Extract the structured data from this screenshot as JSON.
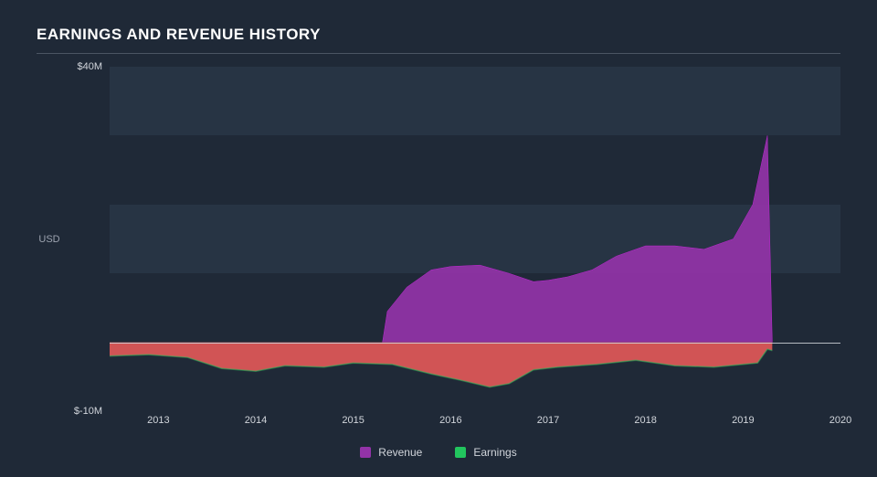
{
  "title": "EARNINGS AND REVENUE HISTORY",
  "chart": {
    "type": "area",
    "background_color": "#1f2937",
    "gridband_color": "#273444",
    "zeroline_color": "#d1d5db",
    "text_color": "#d1d5db",
    "title_color": "#ffffff",
    "yaxis": {
      "label": "USD",
      "min": -10,
      "max": 40,
      "ticks": [
        {
          "value": 40,
          "label": "$40M"
        },
        {
          "value": -10,
          "label": "$-10M"
        }
      ],
      "midband_label": true
    },
    "xaxis": {
      "min": 2012.5,
      "max": 2020,
      "ticks": [
        {
          "value": 2013,
          "label": "2013"
        },
        {
          "value": 2014,
          "label": "2014"
        },
        {
          "value": 2015,
          "label": "2015"
        },
        {
          "value": 2016,
          "label": "2016"
        },
        {
          "value": 2017,
          "label": "2017"
        },
        {
          "value": 2018,
          "label": "2018"
        },
        {
          "value": 2019,
          "label": "2019"
        },
        {
          "value": 2020,
          "label": "2020"
        }
      ]
    },
    "series": {
      "revenue": {
        "label": "Revenue",
        "fill_color": "#9333a8",
        "stroke_color": "#c026d3",
        "stroke_width": 2,
        "opacity": 0.92,
        "points": [
          [
            2015.3,
            0.0
          ],
          [
            2015.35,
            4.5
          ],
          [
            2015.55,
            8.0
          ],
          [
            2015.8,
            10.5
          ],
          [
            2016.0,
            11.0
          ],
          [
            2016.3,
            11.2
          ],
          [
            2016.6,
            10.0
          ],
          [
            2016.85,
            8.8
          ],
          [
            2017.0,
            9.0
          ],
          [
            2017.2,
            9.5
          ],
          [
            2017.45,
            10.5
          ],
          [
            2017.7,
            12.5
          ],
          [
            2018.0,
            14.0
          ],
          [
            2018.3,
            14.0
          ],
          [
            2018.6,
            13.5
          ],
          [
            2018.9,
            15.0
          ],
          [
            2019.1,
            20.0
          ],
          [
            2019.25,
            30.0
          ],
          [
            2019.3,
            0.0
          ]
        ]
      },
      "earnings": {
        "label": "Earnings",
        "fill_color": "#ea5a5a",
        "stroke_color": "#22c55e",
        "stroke_width": 1.5,
        "opacity": 0.88,
        "points": [
          [
            2012.5,
            -2.0
          ],
          [
            2012.9,
            -1.8
          ],
          [
            2013.3,
            -2.2
          ],
          [
            2013.65,
            -3.8
          ],
          [
            2014.0,
            -4.2
          ],
          [
            2014.3,
            -3.4
          ],
          [
            2014.7,
            -3.6
          ],
          [
            2015.0,
            -3.0
          ],
          [
            2015.4,
            -3.2
          ],
          [
            2015.8,
            -4.6
          ],
          [
            2016.1,
            -5.5
          ],
          [
            2016.4,
            -6.5
          ],
          [
            2016.6,
            -6.0
          ],
          [
            2016.85,
            -4.0
          ],
          [
            2017.1,
            -3.6
          ],
          [
            2017.5,
            -3.2
          ],
          [
            2017.9,
            -2.6
          ],
          [
            2018.3,
            -3.4
          ],
          [
            2018.7,
            -3.6
          ],
          [
            2019.0,
            -3.2
          ],
          [
            2019.15,
            -3.0
          ],
          [
            2019.25,
            -1.0
          ],
          [
            2019.3,
            -1.2
          ]
        ]
      }
    },
    "legend": [
      {
        "key": "revenue",
        "label": "Revenue",
        "color": "#9333a8"
      },
      {
        "key": "earnings",
        "label": "Earnings",
        "color": "#22c55e"
      }
    ]
  }
}
